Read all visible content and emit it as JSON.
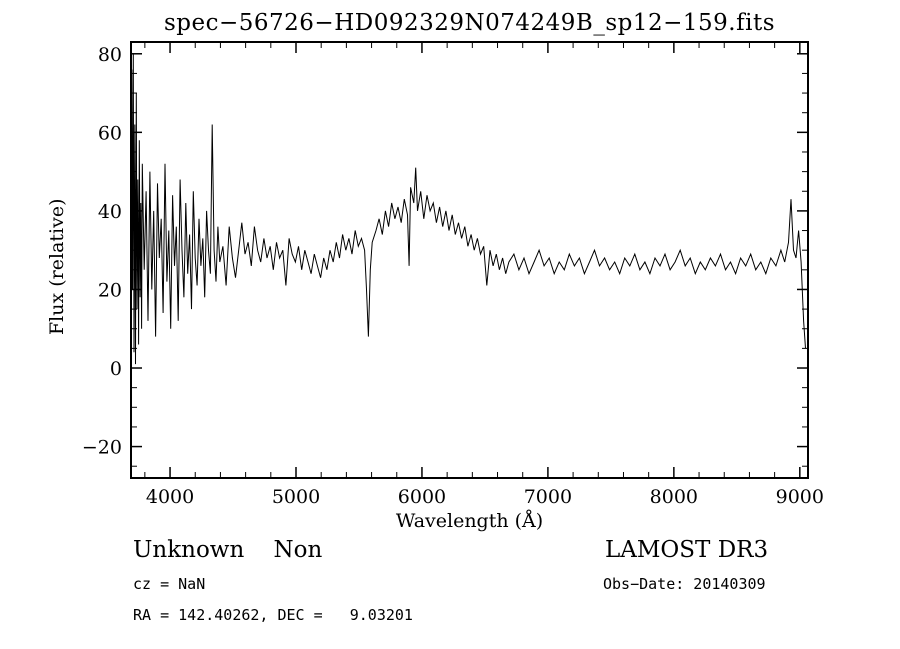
{
  "annotations": {
    "class_label": "Unknown    Non",
    "survey": "LAMOST DR3",
    "cz": "cz = NaN",
    "obs_date": "Obs−Date: 20140309",
    "coords": "RA = 142.40262, DEC =   9.03201"
  },
  "chart_data": {
    "type": "line",
    "title": "spec−56726−HD092329N074249B_sp12−159.fits",
    "xlabel": "Wavelength (Å)",
    "ylabel": "Flux (relative)",
    "line_color": "#000000",
    "background": "#ffffff",
    "grid": false,
    "legend": false,
    "xlim": [
      3690,
      9065
    ],
    "ylim": [
      -28,
      83
    ],
    "x_ticks": [
      4000,
      5000,
      6000,
      7000,
      8000,
      9000
    ],
    "y_ticks": [
      -20,
      0,
      20,
      40,
      60,
      80
    ],
    "x_minor_step": 200,
    "y_minor_step": 5,
    "series": [
      {
        "name": "flux",
        "points": [
          [
            3690,
            12
          ],
          [
            3696,
            76
          ],
          [
            3702,
            20
          ],
          [
            3708,
            80
          ],
          [
            3714,
            4
          ],
          [
            3720,
            62
          ],
          [
            3726,
            1
          ],
          [
            3732,
            70
          ],
          [
            3738,
            15
          ],
          [
            3744,
            48
          ],
          [
            3750,
            6
          ],
          [
            3756,
            58
          ],
          [
            3762,
            18
          ],
          [
            3768,
            42
          ],
          [
            3774,
            10
          ],
          [
            3780,
            52
          ],
          [
            3795,
            25
          ],
          [
            3810,
            45
          ],
          [
            3825,
            12
          ],
          [
            3840,
            50
          ],
          [
            3855,
            20
          ],
          [
            3870,
            40
          ],
          [
            3885,
            8
          ],
          [
            3900,
            47
          ],
          [
            3915,
            28
          ],
          [
            3930,
            38
          ],
          [
            3945,
            14
          ],
          [
            3960,
            52
          ],
          [
            3975,
            22
          ],
          [
            3990,
            35
          ],
          [
            4005,
            10
          ],
          [
            4020,
            44
          ],
          [
            4035,
            26
          ],
          [
            4050,
            36
          ],
          [
            4065,
            12
          ],
          [
            4080,
            48
          ],
          [
            4095,
            30
          ],
          [
            4110,
            18
          ],
          [
            4125,
            42
          ],
          [
            4140,
            24
          ],
          [
            4155,
            34
          ],
          [
            4170,
            15
          ],
          [
            4185,
            45
          ],
          [
            4200,
            28
          ],
          [
            4215,
            21
          ],
          [
            4230,
            38
          ],
          [
            4245,
            26
          ],
          [
            4260,
            33
          ],
          [
            4275,
            18
          ],
          [
            4290,
            40
          ],
          [
            4305,
            30
          ],
          [
            4320,
            24
          ],
          [
            4335,
            62
          ],
          [
            4350,
            30
          ],
          [
            4365,
            22
          ],
          [
            4380,
            36
          ],
          [
            4395,
            27
          ],
          [
            4420,
            31
          ],
          [
            4445,
            21
          ],
          [
            4470,
            36
          ],
          [
            4495,
            28
          ],
          [
            4520,
            23
          ],
          [
            4545,
            30
          ],
          [
            4570,
            37
          ],
          [
            4595,
            29
          ],
          [
            4620,
            32
          ],
          [
            4645,
            26
          ],
          [
            4670,
            36
          ],
          [
            4695,
            30
          ],
          [
            4720,
            27
          ],
          [
            4745,
            33
          ],
          [
            4770,
            28
          ],
          [
            4795,
            31
          ],
          [
            4820,
            25
          ],
          [
            4845,
            32
          ],
          [
            4870,
            28
          ],
          [
            4895,
            30
          ],
          [
            4920,
            21
          ],
          [
            4945,
            33
          ],
          [
            4970,
            29
          ],
          [
            4995,
            27
          ],
          [
            5020,
            31
          ],
          [
            5045,
            25
          ],
          [
            5070,
            30
          ],
          [
            5095,
            27
          ],
          [
            5120,
            24
          ],
          [
            5145,
            29
          ],
          [
            5170,
            26
          ],
          [
            5195,
            23
          ],
          [
            5220,
            28
          ],
          [
            5245,
            25
          ],
          [
            5270,
            30
          ],
          [
            5295,
            27
          ],
          [
            5320,
            32
          ],
          [
            5345,
            28
          ],
          [
            5370,
            34
          ],
          [
            5395,
            30
          ],
          [
            5420,
            33
          ],
          [
            5445,
            29
          ],
          [
            5470,
            35
          ],
          [
            5495,
            31
          ],
          [
            5520,
            33
          ],
          [
            5545,
            30
          ],
          [
            5560,
            20
          ],
          [
            5575,
            8
          ],
          [
            5590,
            25
          ],
          [
            5605,
            32
          ],
          [
            5635,
            35
          ],
          [
            5660,
            38
          ],
          [
            5685,
            34
          ],
          [
            5710,
            40
          ],
          [
            5735,
            36
          ],
          [
            5760,
            42
          ],
          [
            5785,
            38
          ],
          [
            5810,
            41
          ],
          [
            5835,
            37
          ],
          [
            5860,
            43
          ],
          [
            5885,
            39
          ],
          [
            5898,
            26
          ],
          [
            5910,
            46
          ],
          [
            5935,
            42
          ],
          [
            5950,
            51
          ],
          [
            5965,
            40
          ],
          [
            5990,
            45
          ],
          [
            6015,
            38
          ],
          [
            6040,
            44
          ],
          [
            6065,
            40
          ],
          [
            6090,
            42
          ],
          [
            6115,
            37
          ],
          [
            6140,
            41
          ],
          [
            6165,
            36
          ],
          [
            6190,
            40
          ],
          [
            6215,
            35
          ],
          [
            6240,
            39
          ],
          [
            6265,
            34
          ],
          [
            6290,
            37
          ],
          [
            6315,
            33
          ],
          [
            6340,
            36
          ],
          [
            6365,
            31
          ],
          [
            6390,
            34
          ],
          [
            6415,
            30
          ],
          [
            6440,
            33
          ],
          [
            6465,
            29
          ],
          [
            6490,
            31
          ],
          [
            6515,
            21
          ],
          [
            6540,
            30
          ],
          [
            6565,
            26
          ],
          [
            6590,
            29
          ],
          [
            6615,
            25
          ],
          [
            6640,
            28
          ],
          [
            6665,
            24
          ],
          [
            6690,
            27
          ],
          [
            6730,
            29
          ],
          [
            6770,
            25
          ],
          [
            6810,
            28
          ],
          [
            6850,
            24
          ],
          [
            6890,
            27
          ],
          [
            6930,
            30
          ],
          [
            6970,
            26
          ],
          [
            7010,
            28
          ],
          [
            7050,
            24
          ],
          [
            7090,
            27
          ],
          [
            7130,
            25
          ],
          [
            7170,
            29
          ],
          [
            7210,
            26
          ],
          [
            7250,
            28
          ],
          [
            7290,
            24
          ],
          [
            7330,
            27
          ],
          [
            7370,
            30
          ],
          [
            7410,
            26
          ],
          [
            7450,
            28
          ],
          [
            7490,
            25
          ],
          [
            7530,
            27
          ],
          [
            7570,
            24
          ],
          [
            7610,
            28
          ],
          [
            7650,
            26
          ],
          [
            7690,
            29
          ],
          [
            7730,
            25
          ],
          [
            7770,
            27
          ],
          [
            7810,
            24
          ],
          [
            7850,
            28
          ],
          [
            7890,
            26
          ],
          [
            7930,
            29
          ],
          [
            7970,
            25
          ],
          [
            8010,
            27
          ],
          [
            8050,
            30
          ],
          [
            8090,
            26
          ],
          [
            8130,
            28
          ],
          [
            8170,
            24
          ],
          [
            8210,
            27
          ],
          [
            8250,
            25
          ],
          [
            8290,
            28
          ],
          [
            8330,
            26
          ],
          [
            8370,
            29
          ],
          [
            8410,
            25
          ],
          [
            8450,
            27
          ],
          [
            8490,
            24
          ],
          [
            8530,
            28
          ],
          [
            8570,
            26
          ],
          [
            8610,
            29
          ],
          [
            8650,
            25
          ],
          [
            8690,
            27
          ],
          [
            8730,
            24
          ],
          [
            8770,
            28
          ],
          [
            8810,
            26
          ],
          [
            8850,
            30
          ],
          [
            8880,
            27
          ],
          [
            8910,
            32
          ],
          [
            8930,
            43
          ],
          [
            8950,
            30
          ],
          [
            8970,
            28
          ],
          [
            8990,
            35
          ],
          [
            9010,
            27
          ],
          [
            9030,
            12
          ],
          [
            9045,
            5
          ]
        ]
      }
    ]
  }
}
